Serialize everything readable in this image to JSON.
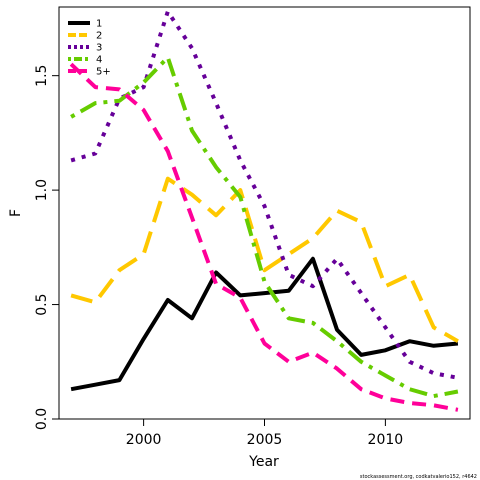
{
  "chart_data": {
    "type": "line",
    "xlabel": "Year",
    "ylabel": "F",
    "xlim": [
      1996.5,
      2013.5
    ],
    "ylim": [
      0,
      1.8
    ],
    "x_ticks": [
      2000,
      2005,
      2010
    ],
    "y_ticks": [
      0.0,
      0.5,
      1.0,
      1.5
    ],
    "x_tick_labels": [
      "2000",
      "2005",
      "2010"
    ],
    "y_tick_labels": [
      "0.0",
      "0.5",
      "1.0",
      "1.5"
    ],
    "legend_position": "top-left",
    "grid": false,
    "x": [
      1997,
      1998,
      1999,
      2000,
      2001,
      2002,
      2003,
      2004,
      2005,
      2006,
      2007,
      2008,
      2009,
      2010,
      2011,
      2012,
      2013
    ],
    "series": [
      {
        "name": "1",
        "color": "#000000",
        "dash": "solid",
        "values": [
          0.13,
          0.15,
          0.17,
          0.35,
          0.52,
          0.44,
          0.64,
          0.54,
          0.55,
          0.56,
          0.7,
          0.39,
          0.28,
          0.3,
          0.34,
          0.32,
          0.33
        ]
      },
      {
        "name": "2",
        "color": "#FFC800",
        "dash": "long",
        "values": [
          0.54,
          0.51,
          0.65,
          0.72,
          1.05,
          0.98,
          0.89,
          1.0,
          0.65,
          0.72,
          0.79,
          0.91,
          0.86,
          0.58,
          0.63,
          0.4,
          0.34
        ]
      },
      {
        "name": "3",
        "color": "#660099",
        "dash": "dot",
        "values": [
          1.13,
          1.16,
          1.4,
          1.45,
          1.78,
          1.62,
          1.38,
          1.13,
          0.93,
          0.63,
          0.58,
          0.7,
          0.55,
          0.4,
          0.25,
          0.2,
          0.18
        ]
      },
      {
        "name": "4",
        "color": "#66CC00",
        "dash": "dotdash",
        "values": [
          1.32,
          1.38,
          1.39,
          1.47,
          1.58,
          1.26,
          1.1,
          0.97,
          0.6,
          0.44,
          0.42,
          0.34,
          0.25,
          0.19,
          0.13,
          0.1,
          0.12
        ]
      },
      {
        "name": "5+",
        "color": "#FF0099",
        "dash": "dash",
        "values": [
          1.55,
          1.45,
          1.44,
          1.35,
          1.17,
          0.88,
          0.59,
          0.53,
          0.33,
          0.25,
          0.29,
          0.22,
          0.13,
          0.09,
          0.07,
          0.06,
          0.04
        ]
      }
    ],
    "credit": "stockassessment.org, codkatvalerio152, r4642"
  }
}
